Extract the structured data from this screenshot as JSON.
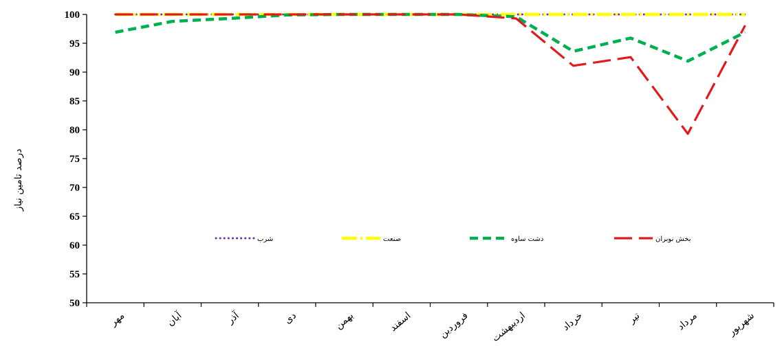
{
  "chart_data": {
    "type": "line",
    "ylabel": "درصد تامین نیاز",
    "xlabel": "",
    "ylim": [
      50,
      100
    ],
    "yticks": [
      100,
      95,
      90,
      85,
      80,
      75,
      70,
      65,
      60,
      55,
      50
    ],
    "categories": [
      "مهر",
      "آبان",
      "آذر",
      "دی",
      "بهمن",
      "اسفند",
      "فروردین",
      "اردیبهشت",
      "خرداد",
      "تیر",
      "مرداد",
      "شهریور"
    ],
    "legend_position": "inside-center",
    "grid": false,
    "series": [
      {
        "name": "شرب",
        "color": "#7030A0",
        "style": "dotted",
        "values": [
          100,
          100,
          100,
          100,
          100,
          100,
          100,
          100,
          100,
          100,
          100,
          100
        ]
      },
      {
        "name": "صنعت",
        "color": "#FFFF00",
        "style": "dash-dot",
        "values": [
          100,
          100,
          100,
          100,
          100,
          100,
          100,
          100,
          100,
          100,
          100,
          100
        ]
      },
      {
        "name": "دشت ساوه",
        "color": "#00B050",
        "style": "dashed",
        "values": [
          96.9,
          98.8,
          99.3,
          99.9,
          100,
          100,
          100,
          99.6,
          93.6,
          95.9,
          91.9,
          96.9
        ]
      },
      {
        "name": "بخش نوبران",
        "color": "#E31A1C",
        "style": "long-dash",
        "values": [
          100,
          100,
          100,
          100,
          100,
          100,
          100,
          99.3,
          91.1,
          92.6,
          79.3,
          98.1
        ]
      }
    ]
  }
}
